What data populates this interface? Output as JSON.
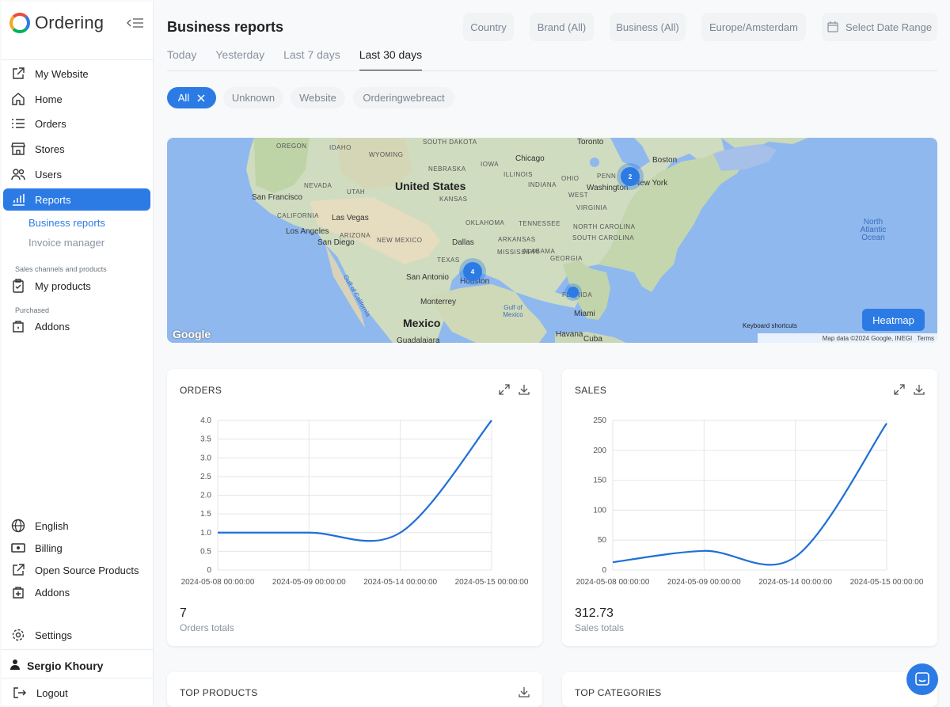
{
  "app": {
    "name": "Ordering"
  },
  "sidebar": {
    "items": [
      {
        "label": "My Website",
        "icon": "external-link-icon"
      },
      {
        "label": "Home",
        "icon": "home-icon"
      },
      {
        "label": "Orders",
        "icon": "list-icon"
      },
      {
        "label": "Stores",
        "icon": "store-icon"
      },
      {
        "label": "Users",
        "icon": "users-icon"
      },
      {
        "label": "Reports",
        "icon": "bar-chart-icon"
      }
    ],
    "reports_sub": [
      {
        "label": "Business reports"
      },
      {
        "label": "Invoice manager"
      }
    ],
    "section_sales": "Sales channels and products",
    "my_products": "My products",
    "section_purchased": "Purchased",
    "addons_top": "Addons",
    "bottom_items": [
      {
        "label": "English",
        "icon": "globe-icon"
      },
      {
        "label": "Billing",
        "icon": "billing-icon"
      },
      {
        "label": "Open Source Products",
        "icon": "external-link-icon"
      },
      {
        "label": "Addons",
        "icon": "addons-icon"
      }
    ],
    "settings": "Settings",
    "user_name": "Sergio Khoury",
    "logout": "Logout"
  },
  "header": {
    "title": "Business reports",
    "filters": {
      "country": "Country",
      "brand": "Brand (All)",
      "business": "Business (All)",
      "timezone": "Europe/Amsterdam",
      "date_range": "Select Date Range"
    },
    "tabs": [
      "Today",
      "Yesterday",
      "Last 7 days",
      "Last 30 days"
    ],
    "active_tab": "Last 30 days"
  },
  "channels": {
    "items": [
      "All",
      "Unknown",
      "Website",
      "Orderingwebreact"
    ],
    "selected": "All"
  },
  "map": {
    "labels": {
      "oregon": "OREGON",
      "idaho": "IDAHO",
      "wyoming": "WYOMING",
      "south_dakota": "SOUTH DAKOTA",
      "nebraska": "NEBRASKA",
      "iowa": "IOWA",
      "nevada": "NEVADA",
      "utah": "UTAH",
      "united_states": "United States",
      "kansas": "KANSAS",
      "illinois": "ILLINOIS",
      "indiana": "INDIANA",
      "ohio": "OHIO",
      "penn": "PENN",
      "san_francisco": "San Francisco",
      "california": "CALIFORNIA",
      "las_vegas": "Las Vegas",
      "los_angeles": "Los Angeles",
      "arizona": "ARIZONA",
      "san_diego": "San Diego",
      "new_mexico": "NEW MEXICO",
      "oklahoma": "OKLAHOMA",
      "dallas": "Dallas",
      "texas": "TEXAS",
      "san_antonio": "San Antonio",
      "houston": "Houston",
      "monterrey": "Monterrey",
      "mexico": "Mexico",
      "guadalajara": "Guadalajara",
      "gulf_of_california": "Gulf of California",
      "gulf_of_mexico": "Gulf of Mexico",
      "tennessee": "TENNESSEE",
      "arkansas": "ARKANSAS",
      "mississippi": "MISSISSIPPI",
      "alabama": "ALABAMA",
      "georgia": "GEORGIA",
      "south_carolina": "SOUTH CAROLINA",
      "north_carolina": "NORTH CAROLINA",
      "virginia": "VIRGINIA",
      "west": "WEST",
      "washington": "Washington",
      "new_york": "New York",
      "boston": "Boston",
      "toronto": "Toronto",
      "chicago": "Chicago",
      "florida": "FLORIDA",
      "miami": "Miami",
      "havana": "Havana",
      "cuba": "Cuba",
      "north_atlantic_ocean": "North Atlantic Ocean",
      "keyboard_shortcuts": "Keyboard shortcuts",
      "map_data": "Map data ©2024 Google, INEGI",
      "terms": "Terms",
      "google": "Google"
    },
    "cluster_houston": "4",
    "cluster_ne": "2",
    "heatmap_button": "Heatmap"
  },
  "orders_card": {
    "title": "ORDERS",
    "total": "7",
    "total_label": "Orders totals",
    "chart_data": {
      "type": "line",
      "title": "",
      "x": [
        "2024-05-08 00:00:00",
        "2024-05-09 00:00:00",
        "2024-05-14 00:00:00",
        "2024-05-15 00:00:00"
      ],
      "series": [
        {
          "values": [
            1,
            1,
            1,
            4
          ]
        }
      ],
      "y_ticks": [
        "0",
        "0.5",
        "1.0",
        "1.5",
        "2.0",
        "2.5",
        "3.0",
        "3.5",
        "4.0"
      ],
      "ylim": [
        0,
        4
      ],
      "grid": true
    }
  },
  "sales_card": {
    "title": "SALES",
    "total": "312.73",
    "total_label": "Sales totals",
    "chart_data": {
      "type": "line",
      "title": "",
      "x": [
        "2024-05-08 00:00:00",
        "2024-05-09 00:00:00",
        "2024-05-14 00:00:00",
        "2024-05-15 00:00:00"
      ],
      "series": [
        {
          "values": [
            13,
            32,
            22,
            245
          ]
        }
      ],
      "y_ticks": [
        "0",
        "50",
        "100",
        "150",
        "200",
        "250"
      ],
      "ylim": [
        0,
        250
      ],
      "grid": true
    }
  },
  "top_products": {
    "title": "TOP PRODUCTS"
  },
  "top_categories": {
    "title": "TOP CATEGORIES"
  },
  "colors": {
    "accent": "#2c7be5",
    "line": "#1f6fd6"
  }
}
